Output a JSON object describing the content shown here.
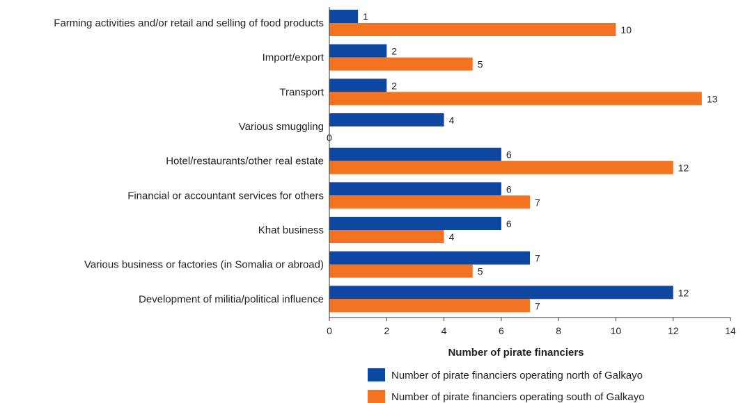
{
  "chart_data": {
    "type": "bar",
    "orientation": "horizontal",
    "categories": [
      "Farming activities and/or retail and selling of food products",
      "Import/export",
      "Transport",
      "Various smuggling",
      "Hotel/restaurants/other real estate",
      "Financial or accountant services for others",
      "Khat business",
      "Various business or factories (in Somalia or abroad)",
      "Development of militia/political influence"
    ],
    "series": [
      {
        "name": "Number of pirate financiers operating north of Galkayo",
        "color": "#0d47a1",
        "values": [
          1,
          2,
          2,
          4,
          6,
          6,
          6,
          7,
          12
        ]
      },
      {
        "name": "Number of pirate financiers operating south of Galkayo",
        "color": "#f47321",
        "values": [
          10,
          5,
          13,
          0,
          12,
          7,
          4,
          5,
          7
        ]
      }
    ],
    "xlabel": "Number of pirate financiers",
    "ylabel": "",
    "xlim": [
      0,
      14
    ],
    "xticks": [
      0,
      2,
      4,
      6,
      8,
      10,
      12,
      14
    ],
    "grid": false,
    "legend_position": "bottom"
  }
}
